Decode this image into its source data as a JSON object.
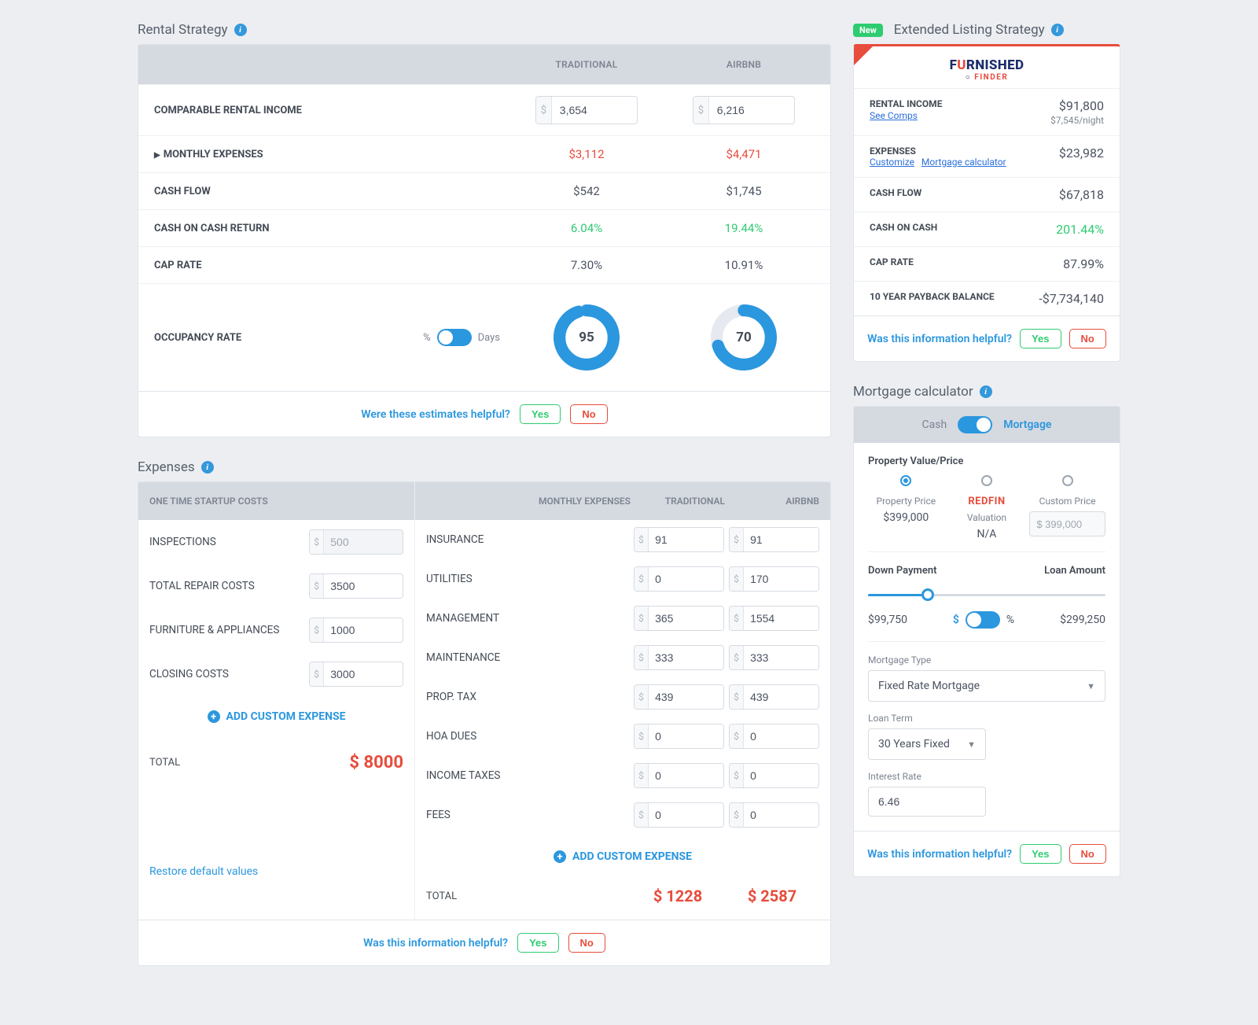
{
  "colors": {
    "primary_blue": "#2b97de",
    "link_blue": "#2b6fdc",
    "red": "#e74c3c",
    "green": "#2ecc71",
    "gray_header": "#d5d9e0",
    "text": "#4a5261",
    "bg": "#eceef2",
    "border": "#e1e4ea",
    "donut_track": "#e6e9ef"
  },
  "helpful": {
    "prompt": "Were these estimates helpful?",
    "prompt2": "Was this information helpful?",
    "yes": "Yes",
    "no": "No"
  },
  "rental_strategy": {
    "title": "Rental Strategy",
    "columns": {
      "c1": "TRADITIONAL",
      "c2": "AIRBNB"
    },
    "rows": {
      "income_label": "COMPARABLE RENTAL INCOME",
      "income_trad": "3,654",
      "income_airbnb": "6,216",
      "expenses_label": "MONTHLY EXPENSES",
      "expenses_trad": "$3,112",
      "expenses_airbnb": "$4,471",
      "cashflow_label": "CASH FLOW",
      "cashflow_trad": "$542",
      "cashflow_airbnb": "$1,745",
      "coc_label": "CASH ON CASH RETURN",
      "coc_trad": "6.04%",
      "coc_airbnb": "19.44%",
      "cap_label": "CAP RATE",
      "cap_trad": "7.30%",
      "cap_airbnb": "10.91%",
      "occ_label": "OCCUPANCY RATE",
      "occ_pct": "%",
      "occ_days": "Days",
      "occ_trad_val": "95",
      "occ_trad_pct": 95,
      "occ_airbnb_val": "70",
      "occ_airbnb_pct": 70
    }
  },
  "extended": {
    "title": "Extended Listing Strategy",
    "badge": "New",
    "logo1": "F",
    "logo2": "RNISHED",
    "logo3": "FINDER",
    "rows": {
      "rental_income_label": "RENTAL INCOME",
      "rental_income_val": "$91,800",
      "rental_income_sub": "$7,545/night",
      "see_comps": "See Comps",
      "expenses_label": "EXPENSES",
      "expenses_val": "$23,982",
      "customize": "Customize",
      "mortgage_calc_link": "Mortgage calculator",
      "cashflow_label": "CASH FLOW",
      "cashflow_val": "$67,818",
      "coc_label": "CASH ON CASH",
      "coc_val": "201.44%",
      "cap_label": "CAP RATE",
      "cap_val": "87.99%",
      "payback_label": "10 YEAR PAYBACK BALANCE",
      "payback_val": "-$7,734,140"
    }
  },
  "expenses": {
    "title": "Expenses",
    "startup_header": "ONE TIME STARTUP COSTS",
    "monthly_header": "MONTHLY EXPENSES",
    "col_trad": "TRADITIONAL",
    "col_airbnb": "AIRBNB",
    "startup": {
      "inspections": {
        "label": "INSPECTIONS",
        "value": "500"
      },
      "repairs": {
        "label": "TOTAL REPAIR COSTS",
        "value": "3500"
      },
      "furniture": {
        "label": "FURNITURE & APPLIANCES",
        "value": "1000"
      },
      "closing": {
        "label": "CLOSING COSTS",
        "value": "3000"
      }
    },
    "startup_total_label": "TOTAL",
    "startup_total": "$ 8000",
    "add_custom": "ADD CUSTOM EXPENSE",
    "monthly": {
      "insurance": {
        "label": "INSURANCE",
        "trad": "91",
        "airbnb": "91"
      },
      "utilities": {
        "label": "UTILITIES",
        "trad": "0",
        "airbnb": "170"
      },
      "management": {
        "label": "MANAGEMENT",
        "trad": "365",
        "airbnb": "1554"
      },
      "maintenance": {
        "label": "MAINTENANCE",
        "trad": "333",
        "airbnb": "333"
      },
      "prop_tax": {
        "label": "PROP. TAX",
        "trad": "439",
        "airbnb": "439"
      },
      "hoa": {
        "label": "HOA DUES",
        "trad": "0",
        "airbnb": "0"
      },
      "income_taxes": {
        "label": "INCOME TAXES",
        "trad": "0",
        "airbnb": "0"
      },
      "fees": {
        "label": "FEES",
        "trad": "0",
        "airbnb": "0"
      }
    },
    "monthly_total_label": "TOTAL",
    "monthly_total_trad": "$ 1228",
    "monthly_total_airbnb": "$ 2587",
    "restore": "Restore default values"
  },
  "mortgage": {
    "title": "Mortgage calculator",
    "head": {
      "cash": "Cash",
      "mortgage": "Mortgage"
    },
    "pv_title": "Property Value/Price",
    "prop_price_label": "Property Price",
    "prop_price_val": "$399,000",
    "redfin_label": "REDFIN",
    "valuation_label": "Valuation",
    "valuation_val": "N/A",
    "custom_label": "Custom Price",
    "custom_val": "$ 399,000",
    "dp_label": "Down Payment",
    "loan_label": "Loan Amount",
    "dp_val": "$99,750",
    "dp_pct": 25,
    "loan_val": "$299,250",
    "cur": "$",
    "pct": "%",
    "mtype_label": "Mortgage Type",
    "mtype_val": "Fixed Rate Mortgage",
    "term_label": "Loan Term",
    "term_val": "30 Years Fixed",
    "rate_label": "Interest Rate",
    "rate_val": "6.46"
  }
}
